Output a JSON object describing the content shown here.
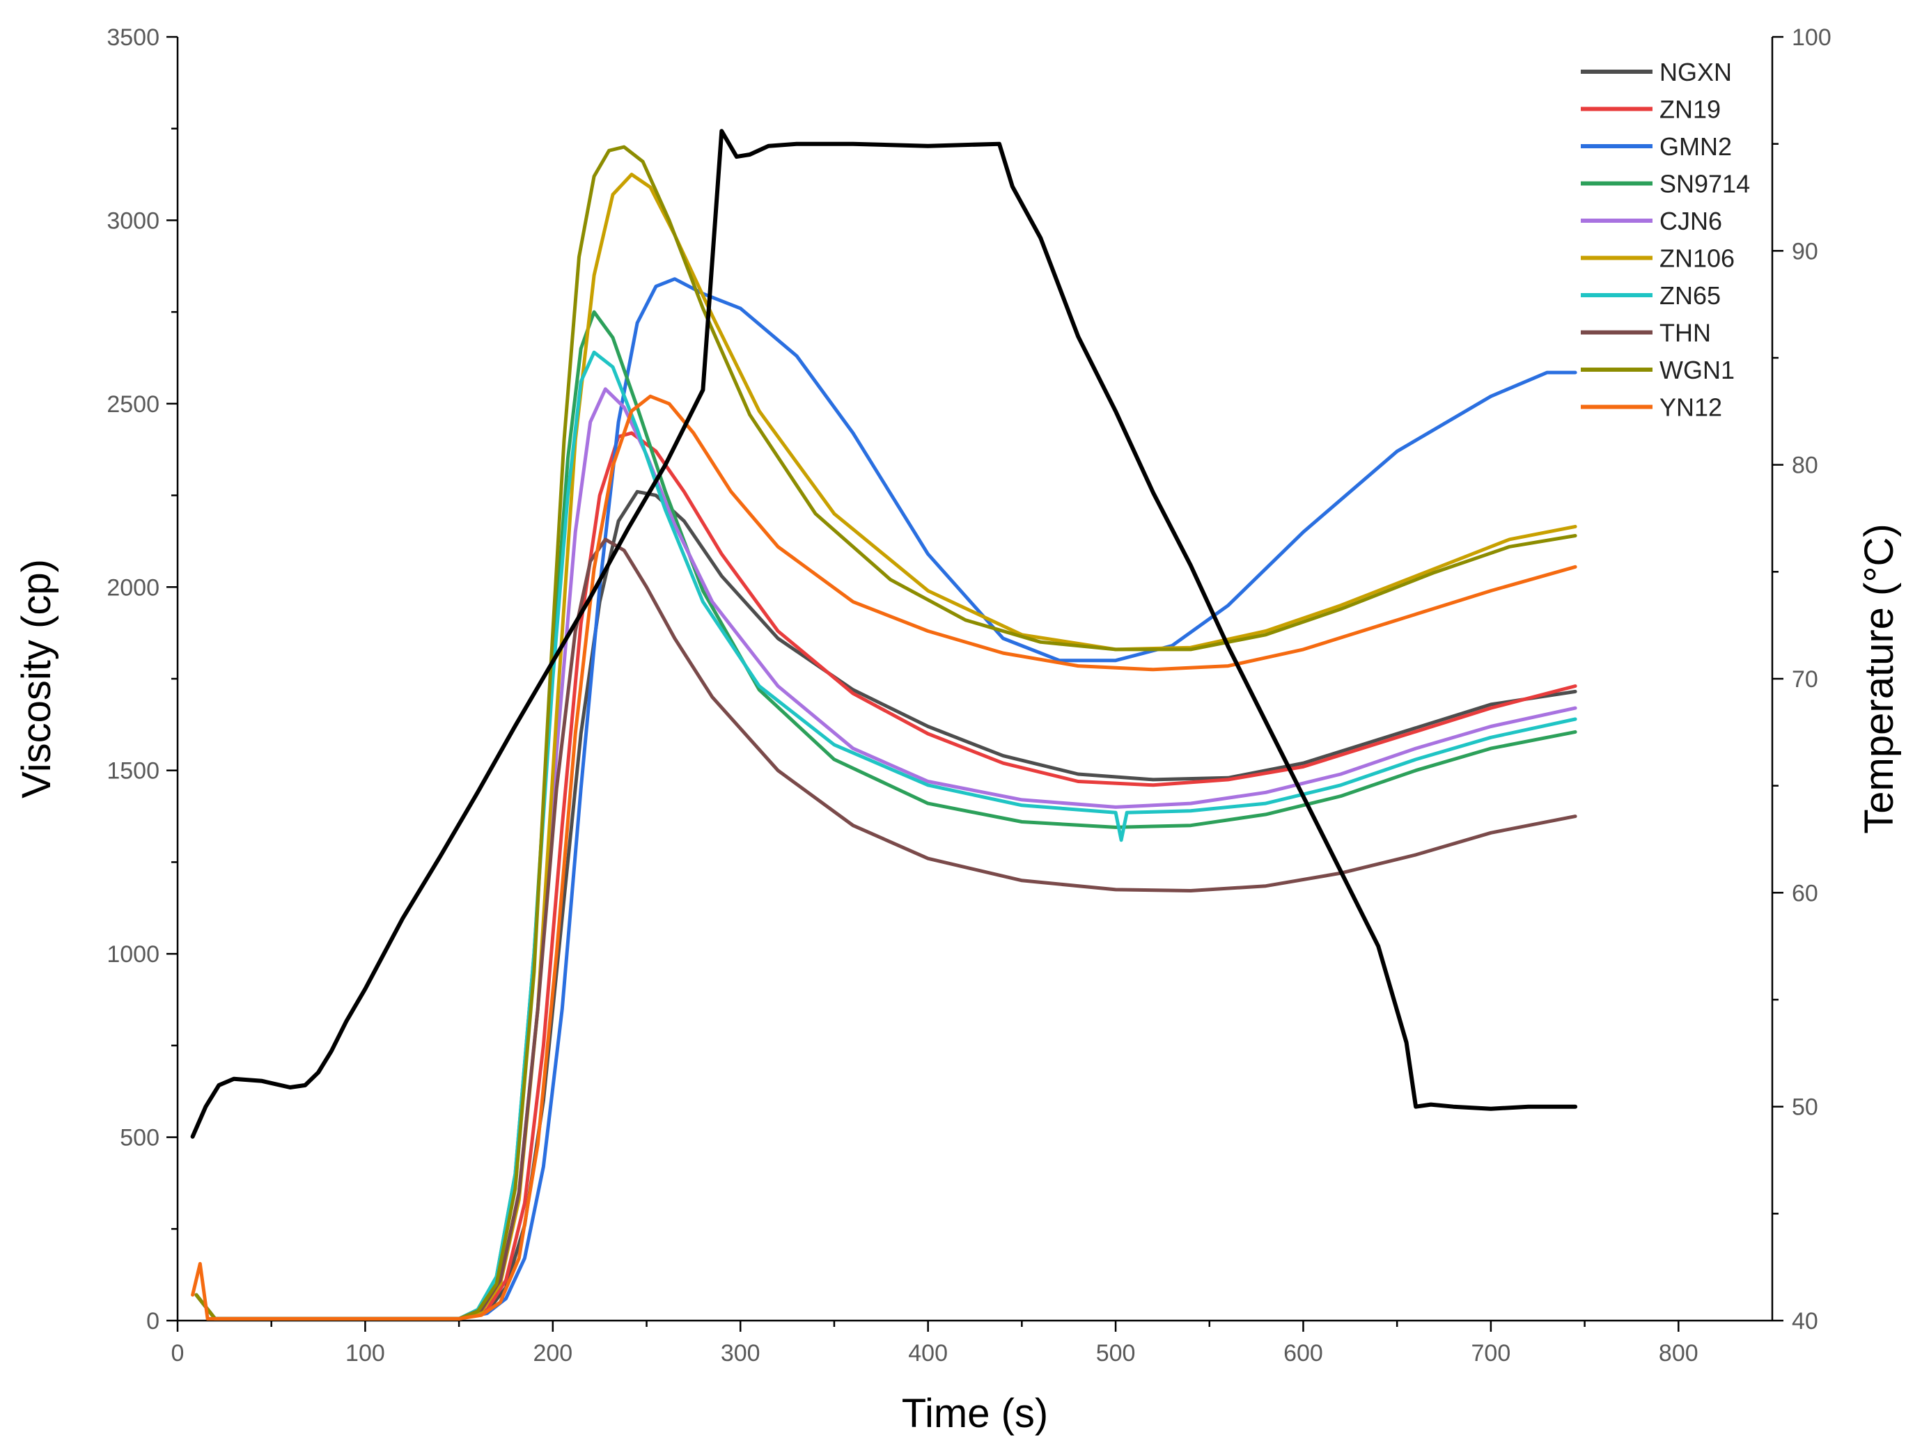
{
  "chart_data": {
    "type": "line",
    "title": "",
    "xlabel": "Time (s)",
    "ylabel": "Viscosity (cp)",
    "y2label": "Temperature (°C)",
    "xlim": [
      0,
      850
    ],
    "ylim": [
      0,
      3500
    ],
    "y2lim": [
      40,
      100
    ],
    "xticks": [
      0,
      100,
      200,
      300,
      400,
      500,
      600,
      700,
      800
    ],
    "yticks": [
      0,
      500,
      1000,
      1500,
      2000,
      2500,
      3000,
      3500
    ],
    "y2ticks": [
      40,
      50,
      60,
      70,
      80,
      90,
      100
    ],
    "legend_position": "top-right",
    "series": [
      {
        "name": "NGXN",
        "color": "#4d4d4d",
        "points": [
          [
            10,
            70
          ],
          [
            20,
            5
          ],
          [
            150,
            5
          ],
          [
            165,
            25
          ],
          [
            175,
            90
          ],
          [
            185,
            260
          ],
          [
            195,
            600
          ],
          [
            205,
            1100
          ],
          [
            215,
            1600
          ],
          [
            225,
            1960
          ],
          [
            235,
            2180
          ],
          [
            245,
            2260
          ],
          [
            255,
            2250
          ],
          [
            270,
            2180
          ],
          [
            290,
            2030
          ],
          [
            320,
            1860
          ],
          [
            360,
            1720
          ],
          [
            400,
            1620
          ],
          [
            440,
            1540
          ],
          [
            480,
            1490
          ],
          [
            520,
            1475
          ],
          [
            560,
            1480
          ],
          [
            600,
            1520
          ],
          [
            650,
            1600
          ],
          [
            700,
            1680
          ],
          [
            745,
            1715
          ]
        ]
      },
      {
        "name": "ZN19",
        "color": "#e83c3c",
        "points": [
          [
            10,
            70
          ],
          [
            20,
            5
          ],
          [
            150,
            5
          ],
          [
            165,
            30
          ],
          [
            175,
            110
          ],
          [
            185,
            320
          ],
          [
            195,
            750
          ],
          [
            205,
            1350
          ],
          [
            215,
            1900
          ],
          [
            225,
            2250
          ],
          [
            235,
            2410
          ],
          [
            242,
            2420
          ],
          [
            255,
            2370
          ],
          [
            270,
            2260
          ],
          [
            290,
            2090
          ],
          [
            320,
            1880
          ],
          [
            360,
            1710
          ],
          [
            400,
            1600
          ],
          [
            440,
            1520
          ],
          [
            480,
            1470
          ],
          [
            520,
            1460
          ],
          [
            560,
            1475
          ],
          [
            600,
            1510
          ],
          [
            650,
            1590
          ],
          [
            700,
            1670
          ],
          [
            745,
            1730
          ]
        ]
      },
      {
        "name": "GMN2",
        "color": "#2a6fe0",
        "points": [
          [
            10,
            70
          ],
          [
            20,
            5
          ],
          [
            150,
            5
          ],
          [
            165,
            20
          ],
          [
            175,
            60
          ],
          [
            185,
            170
          ],
          [
            195,
            420
          ],
          [
            205,
            850
          ],
          [
            215,
            1450
          ],
          [
            225,
            2000
          ],
          [
            235,
            2450
          ],
          [
            245,
            2720
          ],
          [
            255,
            2820
          ],
          [
            265,
            2840
          ],
          [
            280,
            2800
          ],
          [
            300,
            2760
          ],
          [
            330,
            2630
          ],
          [
            360,
            2420
          ],
          [
            400,
            2090
          ],
          [
            440,
            1860
          ],
          [
            470,
            1800
          ],
          [
            500,
            1800
          ],
          [
            530,
            1840
          ],
          [
            560,
            1950
          ],
          [
            600,
            2150
          ],
          [
            650,
            2370
          ],
          [
            700,
            2520
          ],
          [
            730,
            2585
          ],
          [
            745,
            2585
          ]
        ]
      },
      {
        "name": "SN9714",
        "color": "#2ca05a",
        "points": [
          [
            10,
            70
          ],
          [
            20,
            5
          ],
          [
            150,
            5
          ],
          [
            160,
            30
          ],
          [
            170,
            120
          ],
          [
            180,
            400
          ],
          [
            190,
            1000
          ],
          [
            200,
            1800
          ],
          [
            208,
            2350
          ],
          [
            215,
            2650
          ],
          [
            222,
            2750
          ],
          [
            232,
            2680
          ],
          [
            245,
            2490
          ],
          [
            260,
            2260
          ],
          [
            280,
            1990
          ],
          [
            310,
            1720
          ],
          [
            350,
            1530
          ],
          [
            400,
            1410
          ],
          [
            450,
            1360
          ],
          [
            500,
            1345
          ],
          [
            540,
            1350
          ],
          [
            580,
            1380
          ],
          [
            620,
            1430
          ],
          [
            660,
            1500
          ],
          [
            700,
            1560
          ],
          [
            745,
            1605
          ]
        ]
      },
      {
        "name": "CJN6",
        "color": "#a872e0",
        "points": [
          [
            10,
            70
          ],
          [
            20,
            5
          ],
          [
            150,
            5
          ],
          [
            162,
            30
          ],
          [
            172,
            110
          ],
          [
            182,
            350
          ],
          [
            192,
            850
          ],
          [
            202,
            1550
          ],
          [
            212,
            2150
          ],
          [
            220,
            2450
          ],
          [
            228,
            2540
          ],
          [
            238,
            2490
          ],
          [
            250,
            2360
          ],
          [
            265,
            2170
          ],
          [
            285,
            1960
          ],
          [
            320,
            1730
          ],
          [
            360,
            1560
          ],
          [
            400,
            1470
          ],
          [
            450,
            1420
          ],
          [
            500,
            1400
          ],
          [
            540,
            1410
          ],
          [
            580,
            1440
          ],
          [
            620,
            1490
          ],
          [
            660,
            1560
          ],
          [
            700,
            1620
          ],
          [
            745,
            1670
          ]
        ]
      },
      {
        "name": "ZN106",
        "color": "#c8a000",
        "points": [
          [
            10,
            70
          ],
          [
            20,
            5
          ],
          [
            150,
            5
          ],
          [
            162,
            25
          ],
          [
            172,
            100
          ],
          [
            182,
            330
          ],
          [
            192,
            850
          ],
          [
            202,
            1650
          ],
          [
            212,
            2400
          ],
          [
            222,
            2850
          ],
          [
            232,
            3070
          ],
          [
            242,
            3125
          ],
          [
            252,
            3090
          ],
          [
            265,
            2960
          ],
          [
            285,
            2740
          ],
          [
            310,
            2480
          ],
          [
            350,
            2200
          ],
          [
            400,
            1990
          ],
          [
            450,
            1870
          ],
          [
            500,
            1830
          ],
          [
            540,
            1835
          ],
          [
            580,
            1880
          ],
          [
            620,
            1950
          ],
          [
            670,
            2050
          ],
          [
            710,
            2130
          ],
          [
            745,
            2165
          ]
        ]
      },
      {
        "name": "ZN65",
        "color": "#1fc4c4",
        "points": [
          [
            10,
            70
          ],
          [
            20,
            5
          ],
          [
            150,
            5
          ],
          [
            160,
            30
          ],
          [
            170,
            120
          ],
          [
            180,
            400
          ],
          [
            190,
            1000
          ],
          [
            200,
            1750
          ],
          [
            208,
            2250
          ],
          [
            215,
            2560
          ],
          [
            222,
            2640
          ],
          [
            232,
            2600
          ],
          [
            245,
            2430
          ],
          [
            260,
            2210
          ],
          [
            280,
            1960
          ],
          [
            310,
            1730
          ],
          [
            350,
            1570
          ],
          [
            400,
            1460
          ],
          [
            450,
            1405
          ],
          [
            500,
            1385
          ],
          [
            503,
            1310
          ],
          [
            506,
            1385
          ],
          [
            540,
            1390
          ],
          [
            580,
            1410
          ],
          [
            620,
            1460
          ],
          [
            660,
            1530
          ],
          [
            700,
            1590
          ],
          [
            745,
            1640
          ]
        ]
      },
      {
        "name": "THN",
        "color": "#7a4a4a",
        "points": [
          [
            10,
            70
          ],
          [
            20,
            5
          ],
          [
            150,
            5
          ],
          [
            162,
            30
          ],
          [
            172,
            110
          ],
          [
            182,
            350
          ],
          [
            192,
            850
          ],
          [
            202,
            1450
          ],
          [
            212,
            1880
          ],
          [
            220,
            2070
          ],
          [
            228,
            2130
          ],
          [
            238,
            2100
          ],
          [
            250,
            2000
          ],
          [
            265,
            1860
          ],
          [
            285,
            1700
          ],
          [
            320,
            1500
          ],
          [
            360,
            1350
          ],
          [
            400,
            1260
          ],
          [
            450,
            1200
          ],
          [
            500,
            1175
          ],
          [
            540,
            1172
          ],
          [
            580,
            1185
          ],
          [
            620,
            1220
          ],
          [
            660,
            1270
          ],
          [
            700,
            1330
          ],
          [
            745,
            1375
          ]
        ]
      },
      {
        "name": "WGN1",
        "color": "#8c8c00",
        "points": [
          [
            10,
            70
          ],
          [
            20,
            5
          ],
          [
            150,
            5
          ],
          [
            160,
            25
          ],
          [
            170,
            100
          ],
          [
            180,
            360
          ],
          [
            190,
            950
          ],
          [
            198,
            1700
          ],
          [
            206,
            2400
          ],
          [
            214,
            2900
          ],
          [
            222,
            3120
          ],
          [
            230,
            3190
          ],
          [
            238,
            3200
          ],
          [
            248,
            3160
          ],
          [
            262,
            3000
          ],
          [
            280,
            2760
          ],
          [
            305,
            2470
          ],
          [
            340,
            2200
          ],
          [
            380,
            2020
          ],
          [
            420,
            1910
          ],
          [
            460,
            1850
          ],
          [
            500,
            1830
          ],
          [
            540,
            1830
          ],
          [
            580,
            1870
          ],
          [
            620,
            1940
          ],
          [
            670,
            2040
          ],
          [
            710,
            2110
          ],
          [
            745,
            2140
          ]
        ]
      },
      {
        "name": "YN12",
        "color": "#f56a10",
        "points": [
          [
            8,
            70
          ],
          [
            12,
            155
          ],
          [
            16,
            5
          ],
          [
            150,
            5
          ],
          [
            162,
            15
          ],
          [
            172,
            50
          ],
          [
            182,
            170
          ],
          [
            192,
            480
          ],
          [
            202,
            1000
          ],
          [
            212,
            1600
          ],
          [
            222,
            2050
          ],
          [
            232,
            2330
          ],
          [
            242,
            2480
          ],
          [
            252,
            2520
          ],
          [
            262,
            2500
          ],
          [
            275,
            2420
          ],
          [
            295,
            2260
          ],
          [
            320,
            2110
          ],
          [
            360,
            1960
          ],
          [
            400,
            1880
          ],
          [
            440,
            1820
          ],
          [
            480,
            1785
          ],
          [
            520,
            1775
          ],
          [
            560,
            1785
          ],
          [
            600,
            1830
          ],
          [
            650,
            1910
          ],
          [
            700,
            1990
          ],
          [
            745,
            2055
          ]
        ]
      }
    ],
    "temperature_series": {
      "name": "Temperature",
      "color": "#000000",
      "axis": "right",
      "points": [
        [
          8,
          48.6
        ],
        [
          15,
          50.0
        ],
        [
          22,
          51.0
        ],
        [
          30,
          51.3
        ],
        [
          45,
          51.2
        ],
        [
          60,
          50.9
        ],
        [
          68,
          51.0
        ],
        [
          75,
          51.6
        ],
        [
          82,
          52.6
        ],
        [
          90,
          54.0
        ],
        [
          100,
          55.5
        ],
        [
          120,
          58.8
        ],
        [
          140,
          61.7
        ],
        [
          160,
          64.7
        ],
        [
          180,
          67.8
        ],
        [
          200,
          70.8
        ],
        [
          220,
          73.8
        ],
        [
          240,
          77.0
        ],
        [
          260,
          80.0
        ],
        [
          280,
          83.5
        ],
        [
          290,
          95.6
        ],
        [
          298,
          94.4
        ],
        [
          305,
          94.5
        ],
        [
          315,
          94.9
        ],
        [
          330,
          95.0
        ],
        [
          360,
          95.0
        ],
        [
          400,
          94.9
        ],
        [
          438,
          95.0
        ],
        [
          445,
          93.0
        ],
        [
          460,
          90.6
        ],
        [
          480,
          86.0
        ],
        [
          500,
          82.5
        ],
        [
          520,
          78.7
        ],
        [
          540,
          75.3
        ],
        [
          560,
          71.5
        ],
        [
          580,
          68.0
        ],
        [
          600,
          64.5
        ],
        [
          620,
          61.0
        ],
        [
          640,
          57.5
        ],
        [
          655,
          53.0
        ],
        [
          660,
          50.0
        ],
        [
          668,
          50.1
        ],
        [
          680,
          50.0
        ],
        [
          700,
          49.9
        ],
        [
          720,
          50.0
        ],
        [
          745,
          50.0
        ]
      ]
    }
  }
}
